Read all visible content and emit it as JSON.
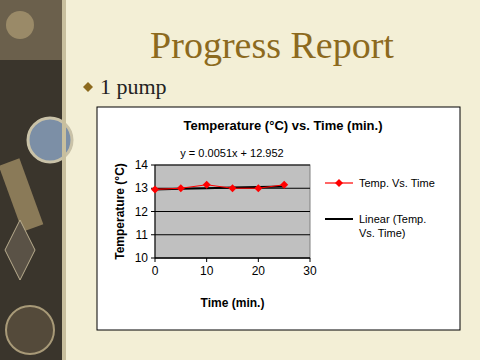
{
  "slide": {
    "title": "Progress Report",
    "bullet": "1 pump"
  },
  "chart_data": {
    "type": "scatter",
    "title": "Temperature (°C) vs. Time (min.)",
    "x_label": "Time (min.)",
    "y_label": "Temperature (°C)",
    "annotation": "y = 0.0051x + 12.952",
    "x": [
      0,
      5,
      10,
      15,
      20,
      25
    ],
    "series": [
      {
        "name": "Temp. Vs. Time",
        "color": "#ff0000",
        "marker": "diamond",
        "line_style": "solid",
        "values": [
          12.95,
          13.0,
          13.15,
          13.0,
          13.0,
          13.15
        ]
      },
      {
        "name": "Linear (Temp. Vs. Time)",
        "color": "#000000",
        "marker": "none",
        "line_style": "solid",
        "values": [
          12.95,
          12.98,
          13.0,
          13.03,
          13.05,
          13.08
        ]
      }
    ],
    "xlim": [
      0,
      30
    ],
    "xticks": [
      0,
      10,
      20,
      30
    ],
    "ylim": [
      10,
      14
    ],
    "yticks": [
      10,
      11,
      12,
      13,
      14
    ],
    "grid": true,
    "legend": "right"
  }
}
